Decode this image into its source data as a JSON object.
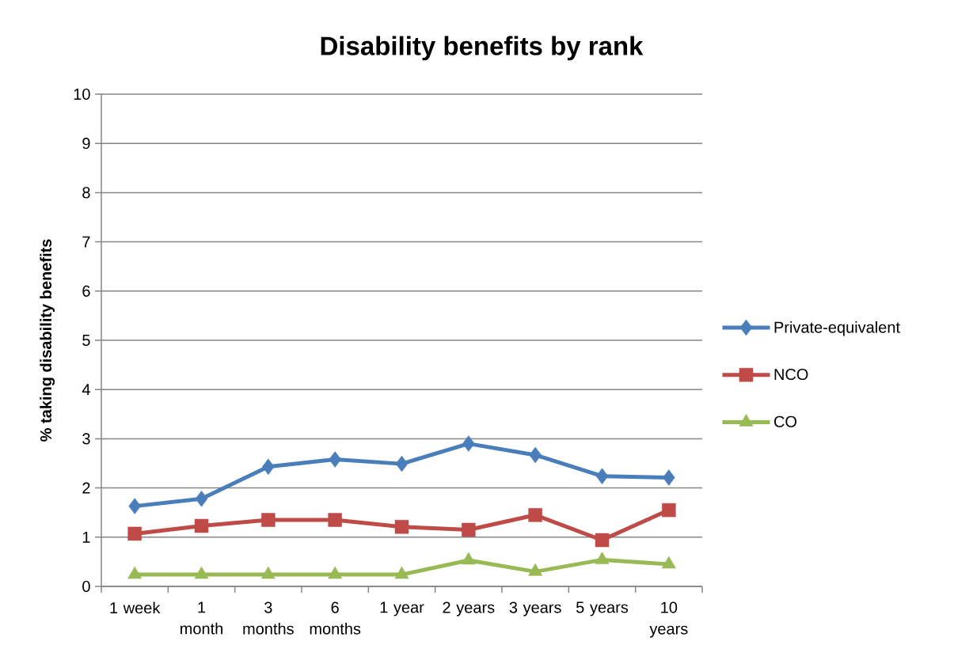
{
  "chart_data": {
    "type": "line",
    "title": "Disability benefits by rank",
    "ylabel": "% taking disability benefits",
    "categories": [
      "1 week",
      "1 month",
      "3 months",
      "6 months",
      "1 year",
      "2 years",
      "3 years",
      "5 years",
      "10 years"
    ],
    "series": [
      {
        "name": "Private-equivalent",
        "color": "#4a7ebb",
        "marker": "diamond",
        "values": [
          1.63,
          1.78,
          2.43,
          2.58,
          2.49,
          2.9,
          2.67,
          2.24,
          2.21
        ]
      },
      {
        "name": "NCO",
        "color": "#be4b48",
        "marker": "square",
        "values": [
          1.07,
          1.23,
          1.35,
          1.35,
          1.21,
          1.15,
          1.45,
          0.94,
          1.55
        ]
      },
      {
        "name": "CO",
        "color": "#98b954",
        "marker": "triangle",
        "values": [
          0.24,
          0.24,
          0.24,
          0.24,
          0.24,
          0.53,
          0.3,
          0.54,
          0.45
        ]
      }
    ],
    "ylim": [
      0,
      10
    ],
    "yticks": [
      0,
      1,
      2,
      3,
      4,
      5,
      6,
      7,
      8,
      9,
      10
    ],
    "grid": "y",
    "legend": "right",
    "line_style": "solid"
  }
}
